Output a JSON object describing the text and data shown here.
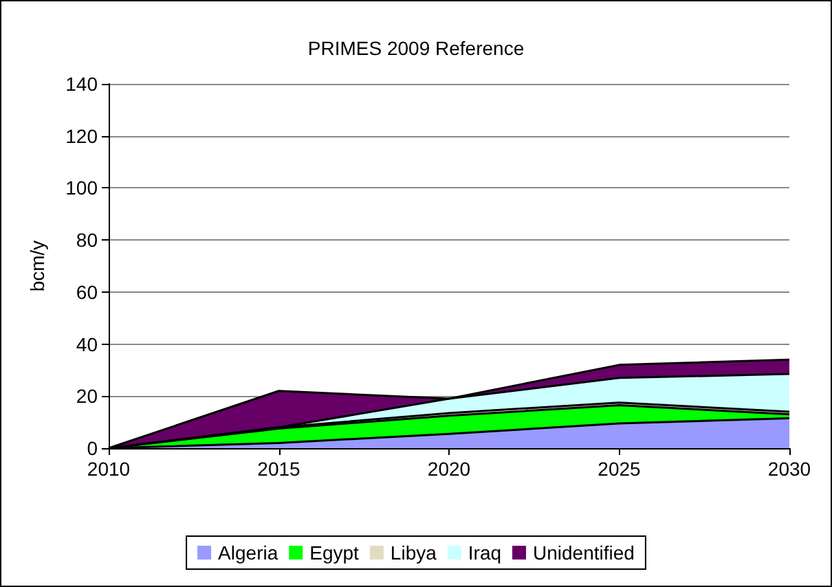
{
  "chart_data": {
    "type": "area",
    "title": "PRIMES 2009 Reference",
    "ylabel": "bcm/y",
    "stacked": true,
    "categories": [
      "2010",
      "2015",
      "2020",
      "2025",
      "2030"
    ],
    "series": [
      {
        "name": "Algeria",
        "color": "#9999ff",
        "values": [
          0,
          2,
          5.5,
          9.5,
          11.5
        ]
      },
      {
        "name": "Egypt",
        "color": "#00ff00",
        "values": [
          0,
          5.5,
          7,
          7,
          1.5
        ]
      },
      {
        "name": "Libya",
        "color": "#e0dcc0",
        "values": [
          0,
          0.5,
          1,
          1,
          1
        ]
      },
      {
        "name": "Iraq",
        "color": "#ccffff",
        "values": [
          0,
          0,
          5.5,
          9.5,
          14.5
        ]
      },
      {
        "name": "Unidentified",
        "color": "#660066",
        "values": [
          0,
          14,
          0,
          5,
          5.5
        ]
      }
    ],
    "ylim": [
      0,
      140
    ],
    "yticks": [
      0,
      20,
      40,
      60,
      80,
      100,
      120,
      140
    ],
    "grid": "y",
    "legend": "bottom"
  }
}
